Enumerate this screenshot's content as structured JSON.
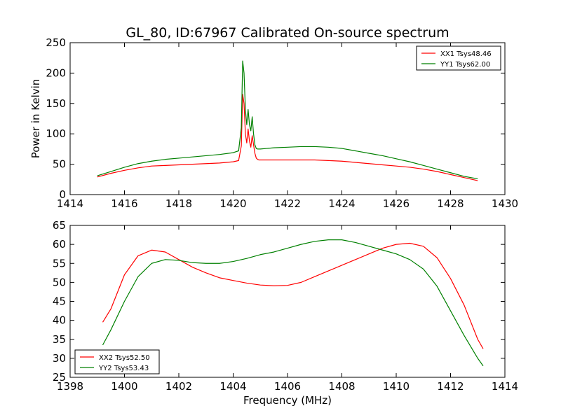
{
  "title": "GL_80, ID:67967 Calibrated On-source spectrum",
  "colors": {
    "xx": "#ff0000",
    "yy": "#008000"
  },
  "chart_data": [
    {
      "type": "line",
      "title": "GL_80, ID:67967 Calibrated On-source spectrum",
      "xlabel": "",
      "ylabel": "Power in Kelvin",
      "xlim": [
        1414,
        1430
      ],
      "ylim": [
        0,
        250
      ],
      "xticks": [
        1414,
        1416,
        1418,
        1420,
        1422,
        1424,
        1426,
        1428,
        1430
      ],
      "yticks": [
        0,
        50,
        100,
        150,
        200,
        250
      ],
      "grid": false,
      "legend_position": "top-right",
      "series": [
        {
          "name": "XX1 Tsys48.46",
          "color": "#ff0000",
          "x": [
            1415.0,
            1415.5,
            1416.0,
            1416.5,
            1417.0,
            1417.5,
            1418.0,
            1418.5,
            1419.0,
            1419.5,
            1420.0,
            1420.2,
            1420.3,
            1420.35,
            1420.4,
            1420.45,
            1420.5,
            1420.55,
            1420.6,
            1420.65,
            1420.7,
            1420.75,
            1420.8,
            1420.85,
            1420.9,
            1420.95,
            1421.0,
            1421.5,
            1422.0,
            1422.5,
            1423.0,
            1423.5,
            1424.0,
            1424.5,
            1425.0,
            1425.5,
            1426.0,
            1426.5,
            1427.0,
            1427.5,
            1428.0,
            1428.5,
            1429.0
          ],
          "y": [
            29,
            35,
            40,
            44,
            47,
            48,
            49,
            50,
            51,
            52,
            54,
            56,
            80,
            165,
            150,
            100,
            85,
            108,
            88,
            78,
            97,
            82,
            68,
            60,
            58,
            57,
            57,
            57,
            57,
            57,
            57,
            56,
            55,
            53,
            51,
            49,
            47,
            45,
            42,
            38,
            33,
            28,
            23
          ]
        },
        {
          "name": "YY1 Tsys62.00",
          "color": "#008000",
          "x": [
            1415.0,
            1415.5,
            1416.0,
            1416.5,
            1417.0,
            1417.5,
            1418.0,
            1418.5,
            1419.0,
            1419.5,
            1420.0,
            1420.2,
            1420.3,
            1420.35,
            1420.4,
            1420.45,
            1420.5,
            1420.55,
            1420.6,
            1420.65,
            1420.7,
            1420.75,
            1420.8,
            1420.85,
            1420.9,
            1420.95,
            1421.0,
            1421.5,
            1422.0,
            1422.5,
            1423.0,
            1423.5,
            1424.0,
            1424.5,
            1425.0,
            1425.5,
            1426.0,
            1426.5,
            1427.0,
            1427.5,
            1428.0,
            1428.5,
            1429.0
          ],
          "y": [
            31,
            38,
            45,
            51,
            55,
            58,
            60,
            62,
            64,
            66,
            69,
            72,
            110,
            220,
            200,
            140,
            115,
            140,
            115,
            105,
            128,
            100,
            82,
            76,
            75,
            75,
            75,
            77,
            78,
            79,
            79,
            78,
            76,
            72,
            68,
            64,
            59,
            54,
            48,
            42,
            36,
            30,
            26
          ]
        }
      ]
    },
    {
      "type": "line",
      "title": "",
      "xlabel": "Frequency (MHz)",
      "ylabel": "",
      "xlim": [
        1398,
        1414
      ],
      "ylim": [
        25,
        65
      ],
      "xticks": [
        1398,
        1400,
        1402,
        1404,
        1406,
        1408,
        1410,
        1412,
        1414
      ],
      "yticks": [
        25,
        30,
        35,
        40,
        45,
        50,
        55,
        60,
        65
      ],
      "grid": false,
      "legend_position": "bottom-left",
      "series": [
        {
          "name": "XX2 Tsys52.50",
          "color": "#ff0000",
          "x": [
            1399.2,
            1399.5,
            1400.0,
            1400.5,
            1401.0,
            1401.5,
            1402.0,
            1402.5,
            1403.0,
            1403.5,
            1404.0,
            1404.5,
            1405.0,
            1405.5,
            1406.0,
            1406.5,
            1407.0,
            1407.5,
            1408.0,
            1408.5,
            1409.0,
            1409.5,
            1410.0,
            1410.5,
            1411.0,
            1411.5,
            1412.0,
            1412.5,
            1413.0,
            1413.2
          ],
          "y": [
            39.5,
            43,
            52,
            57,
            58.5,
            58,
            56,
            54,
            52.5,
            51.2,
            50.5,
            49.8,
            49.3,
            49.1,
            49.2,
            50,
            51.5,
            53,
            54.5,
            56,
            57.5,
            59,
            60,
            60.3,
            59.5,
            56.5,
            51,
            44,
            35,
            32.5
          ]
        },
        {
          "name": "YY2 Tsys53.43",
          "color": "#008000",
          "x": [
            1399.2,
            1399.5,
            1400.0,
            1400.5,
            1401.0,
            1401.5,
            1402.0,
            1402.5,
            1403.0,
            1403.5,
            1404.0,
            1404.5,
            1405.0,
            1405.5,
            1406.0,
            1406.5,
            1407.0,
            1407.5,
            1408.0,
            1408.5,
            1409.0,
            1409.5,
            1410.0,
            1410.5,
            1411.0,
            1411.5,
            1412.0,
            1412.5,
            1413.0,
            1413.2
          ],
          "y": [
            33.5,
            37.5,
            45,
            51.5,
            55,
            56,
            55.8,
            55.2,
            55,
            55,
            55.5,
            56.3,
            57.3,
            58,
            59,
            60,
            60.8,
            61.2,
            61.2,
            60.5,
            59.5,
            58.5,
            57.5,
            56,
            53.5,
            49,
            42.5,
            36,
            30,
            28
          ]
        }
      ]
    }
  ]
}
